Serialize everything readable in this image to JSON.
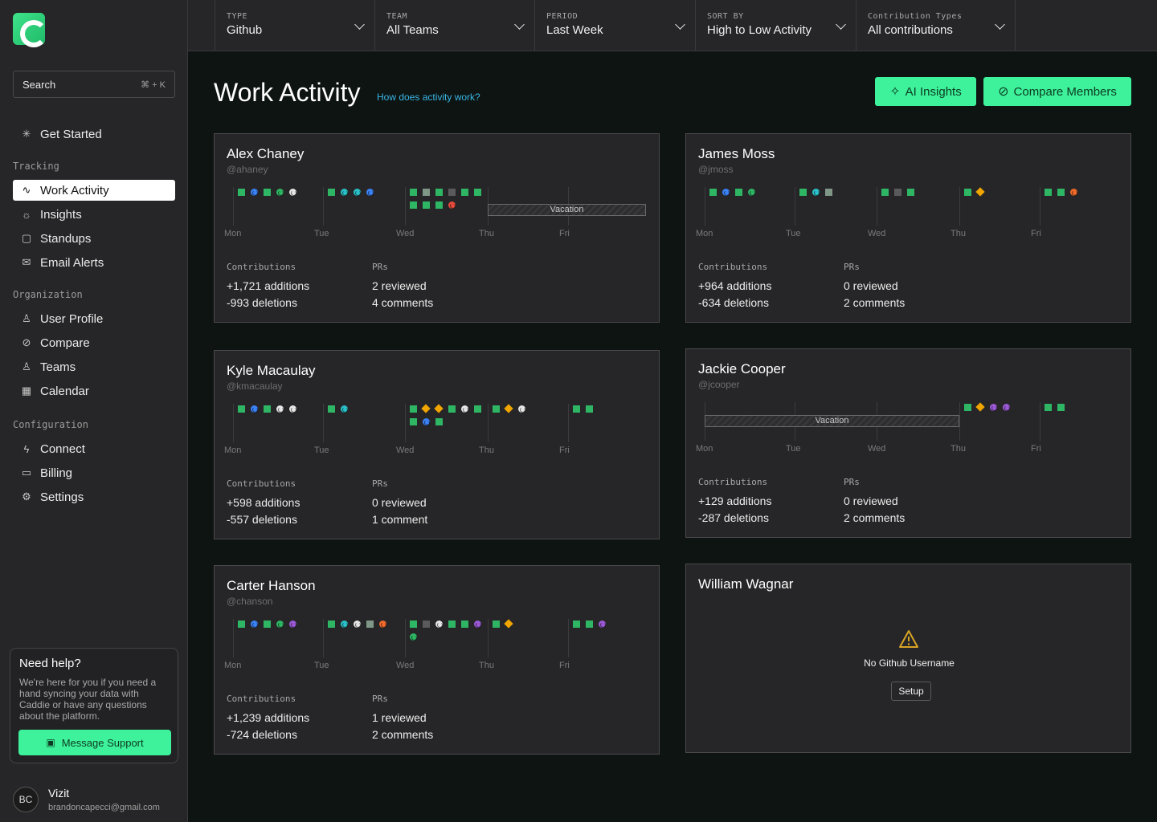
{
  "sidebar": {
    "search_label": "Search",
    "search_shortcut": "⌘ + K",
    "get_started": "Get Started",
    "tracking_label": "Tracking",
    "tracking_items": [
      "Work Activity",
      "Insights",
      "Standups",
      "Email Alerts"
    ],
    "organization_label": "Organization",
    "organization_items": [
      "User Profile",
      "Compare",
      "Teams",
      "Calendar"
    ],
    "configuration_label": "Configuration",
    "configuration_items": [
      "Connect",
      "Billing",
      "Settings"
    ],
    "help": {
      "title": "Need help?",
      "text": "We're here for you if you need a hand syncing your data with Caddie or have any questions about the platform.",
      "button": "Message Support"
    },
    "user": {
      "initials": "BC",
      "name": "Vizit",
      "email": "brandoncapecci@gmail.com"
    }
  },
  "filters": [
    {
      "label": "TYPE",
      "value": "Github"
    },
    {
      "label": "TEAM",
      "value": "All Teams"
    },
    {
      "label": "PERIOD",
      "value": "Last Week"
    },
    {
      "label": "SORT BY",
      "value": "High to Low Activity"
    },
    {
      "label": "Contribution Types",
      "value": "All contributions"
    }
  ],
  "header": {
    "title": "Work Activity",
    "help_link": "How does activity work?",
    "ai_insights": "AI Insights",
    "compare_members": "Compare Members"
  },
  "days": [
    "Mon",
    "Tue",
    "Wed",
    "Thu",
    "Fri"
  ],
  "stat_labels": {
    "contributions": "Contributions",
    "prs": "PRs"
  },
  "vacation_label": "Vacation",
  "colors": {
    "accent": "#3df29a",
    "commit": "#2eb664",
    "link": "#3bb6e8"
  },
  "members": [
    {
      "name": "Alex Chaney",
      "handle": "@ahaney",
      "additions": "+1,721 additions",
      "deletions": "-993 deletions",
      "reviewed": "2 reviewed",
      "comments": "4 comments",
      "vacation": [
        3,
        4
      ],
      "activity": [
        [
          [
            "sq",
            "d-blue",
            "sq",
            "d-green",
            "d-white"
          ]
        ],
        [
          [
            "sq",
            "d-teal",
            "d-teal",
            "d-blue"
          ]
        ],
        [
          [
            "sq",
            "sq-light",
            "sq",
            "sq-gray",
            "sq",
            "sq"
          ],
          [
            "sq",
            "sq",
            "sq",
            "d-red"
          ]
        ],
        [],
        []
      ]
    },
    {
      "name": "James Moss",
      "handle": "@jmoss",
      "additions": "+964 additions",
      "deletions": "-634 deletions",
      "reviewed": "0 reviewed",
      "comments": "2 comments",
      "vacation": [],
      "activity": [
        [
          [
            "sq",
            "d-blue",
            "sq",
            "d-green"
          ]
        ],
        [
          [
            "sq",
            "d-teal",
            "sq-light"
          ]
        ],
        [
          [
            "sq",
            "sq-gray",
            "sq"
          ]
        ],
        [
          [
            "sq",
            "dia"
          ]
        ],
        [
          [
            "sq",
            "sq",
            "d-orange"
          ]
        ]
      ]
    },
    {
      "name": "Kyle Macaulay",
      "handle": "@kmacaulay",
      "additions": "+598 additions",
      "deletions": "-557 deletions",
      "reviewed": "0 reviewed",
      "comments": "1 comment",
      "vacation": [],
      "activity": [
        [
          [
            "sq",
            "d-blue",
            "sq",
            "d-white",
            "d-white"
          ]
        ],
        [
          [
            "sq",
            "d-teal"
          ]
        ],
        [
          [
            "sq",
            "dia",
            "dia",
            "sq",
            "d-white",
            "sq"
          ],
          [
            "sq",
            "d-blue",
            "sq"
          ]
        ],
        [
          [
            "sq",
            "dia",
            "d-white"
          ]
        ],
        [
          [
            "sq",
            "sq"
          ]
        ]
      ]
    },
    {
      "name": "Jackie Cooper",
      "handle": "@jcooper",
      "additions": "+129 additions",
      "deletions": "-287 deletions",
      "reviewed": "0 reviewed",
      "comments": "2 comments",
      "vacation": [
        0,
        1,
        2
      ],
      "activity": [
        [],
        [],
        [],
        [
          [
            "sq",
            "dia",
            "d-purple",
            "d-purple"
          ]
        ],
        [
          [
            "sq",
            "sq"
          ]
        ]
      ]
    },
    {
      "name": "Carter Hanson",
      "handle": "@chanson",
      "additions": "+1,239 additions",
      "deletions": "-724 deletions",
      "reviewed": "1 reviewed",
      "comments": "2 comments",
      "vacation": [],
      "activity": [
        [
          [
            "sq",
            "d-blue",
            "sq",
            "d-green",
            "d-purple"
          ]
        ],
        [
          [
            "sq",
            "d-teal",
            "d-white",
            "sq-light",
            "d-orange"
          ]
        ],
        [
          [
            "sq",
            "sq-gray",
            "d-white",
            "sq",
            "sq",
            "d-purple"
          ],
          [
            "d-green"
          ]
        ],
        [
          [
            "sq",
            "dia"
          ]
        ],
        [
          [
            "sq",
            "sq",
            "d-purple"
          ]
        ]
      ]
    },
    {
      "name": "William Wagnar",
      "no_username": "No Github Username",
      "setup": "Setup"
    }
  ]
}
